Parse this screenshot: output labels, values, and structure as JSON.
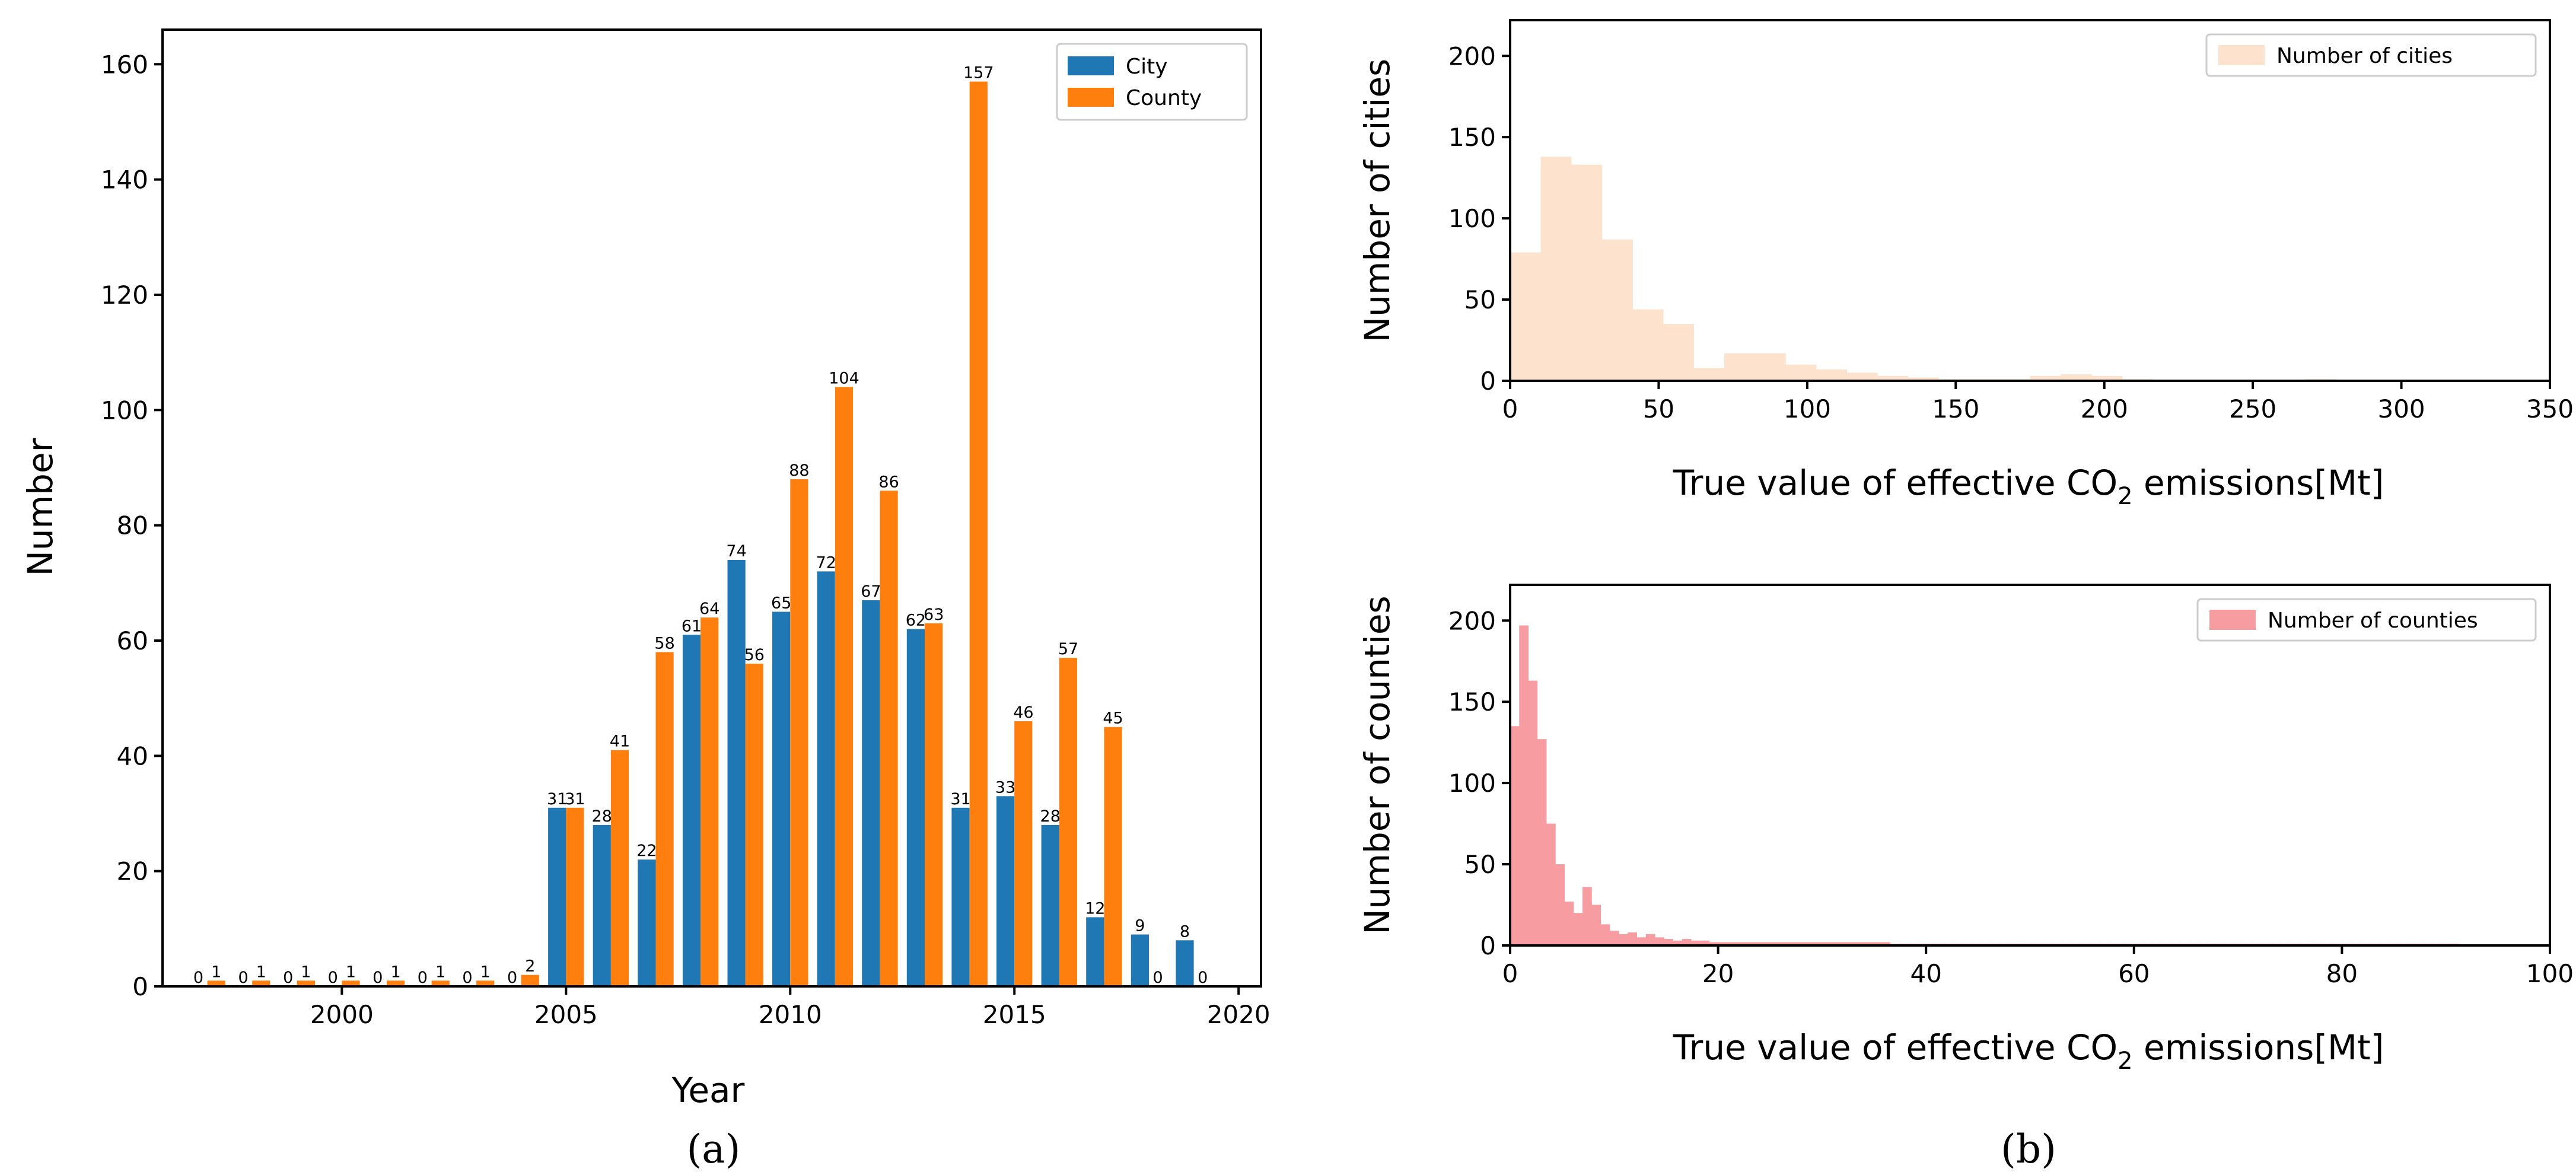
{
  "colors": {
    "city": "#1f77b4",
    "county": "#ff7f0e",
    "cities_hist": "#fde3cd",
    "counties_hist": "#f79ca0",
    "axis": "#000000"
  },
  "chart_data": [
    {
      "type": "bar",
      "panel": "(a)",
      "xlabel": "Year",
      "ylabel": "Number",
      "xlim": [
        1996,
        2020.5
      ],
      "ylim": [
        0,
        166
      ],
      "x_ticks": [
        2000,
        2005,
        2010,
        2015,
        2020
      ],
      "y_ticks": [
        0,
        20,
        40,
        60,
        80,
        100,
        120,
        140,
        160
      ],
      "legend_position": "top-right",
      "categories": [
        1997,
        1998,
        1999,
        2000,
        2001,
        2002,
        2003,
        2004,
        2005,
        2006,
        2007,
        2008,
        2009,
        2010,
        2011,
        2012,
        2013,
        2014,
        2015,
        2016,
        2017,
        2018,
        2019
      ],
      "series": [
        {
          "name": "City",
          "color": "#1f77b4",
          "values": [
            0,
            0,
            0,
            0,
            0,
            0,
            0,
            0,
            31,
            28,
            22,
            61,
            74,
            65,
            72,
            67,
            62,
            31,
            33,
            28,
            12,
            9,
            8
          ]
        },
        {
          "name": "County",
          "color": "#ff7f0e",
          "values": [
            1,
            1,
            1,
            1,
            1,
            1,
            1,
            2,
            31,
            41,
            58,
            64,
            56,
            88,
            104,
            86,
            63,
            157,
            46,
            57,
            45,
            0,
            0
          ]
        }
      ]
    },
    {
      "type": "histogram",
      "panel": "(b) top",
      "xlabel": "True value of effective CO",
      "xlabel_sub": "2",
      "xlabel_tail": " emissions[Mt]",
      "ylabel": "Number of cities",
      "xlim": [
        0,
        350
      ],
      "ylim": [
        0,
        222
      ],
      "x_ticks": [
        0,
        50,
        100,
        150,
        200,
        250,
        300,
        350
      ],
      "y_ticks": [
        0,
        50,
        100,
        150,
        200
      ],
      "legend_position": "top-right",
      "legend": "Number of cities",
      "color": "#fde3cd",
      "bin_width": 10.3,
      "counts": [
        79,
        138,
        133,
        87,
        44,
        35,
        8,
        17,
        17,
        10,
        7,
        5,
        3,
        2,
        1,
        1,
        1,
        3,
        4,
        3,
        1,
        0,
        0,
        0,
        0,
        0,
        1,
        0,
        0,
        0,
        0,
        0,
        0,
        0
      ]
    },
    {
      "type": "histogram",
      "panel": "(b) bottom",
      "xlabel": "True value of effective CO",
      "xlabel_sub": "2",
      "xlabel_tail": " emissions[Mt]",
      "ylabel": "Number of counties",
      "xlim": [
        0,
        100
      ],
      "ylim": [
        0,
        222
      ],
      "x_ticks": [
        0,
        20,
        40,
        60,
        80,
        100
      ],
      "y_ticks": [
        0,
        50,
        100,
        150,
        200
      ],
      "legend_position": "top-right",
      "legend": "Number of counties",
      "color": "#f79ca0",
      "bin_width": 0.87,
      "counts": [
        135,
        197,
        163,
        127,
        75,
        50,
        27,
        20,
        36,
        25,
        13,
        9,
        7,
        8,
        5,
        7,
        5,
        4,
        3,
        4,
        3,
        3,
        2,
        2,
        2,
        2,
        2,
        2,
        2,
        2,
        2,
        2,
        2,
        2,
        2,
        2,
        2,
        2,
        2,
        2,
        2,
        2,
        1,
        1,
        1,
        1,
        1,
        1,
        1,
        1,
        1,
        1,
        1,
        1,
        1,
        1,
        1,
        1,
        1,
        1,
        1,
        1,
        1,
        1,
        1,
        1,
        1,
        1,
        1,
        1,
        1,
        1,
        1,
        1,
        1,
        1,
        1,
        1,
        1,
        1,
        1,
        1,
        1,
        1,
        1,
        1,
        1,
        1,
        1,
        1,
        1,
        1,
        1,
        1,
        1,
        1,
        1,
        1,
        1,
        1,
        1,
        1,
        1,
        1,
        1
      ]
    }
  ],
  "captions": {
    "a": "(a)",
    "b": "(b)"
  }
}
